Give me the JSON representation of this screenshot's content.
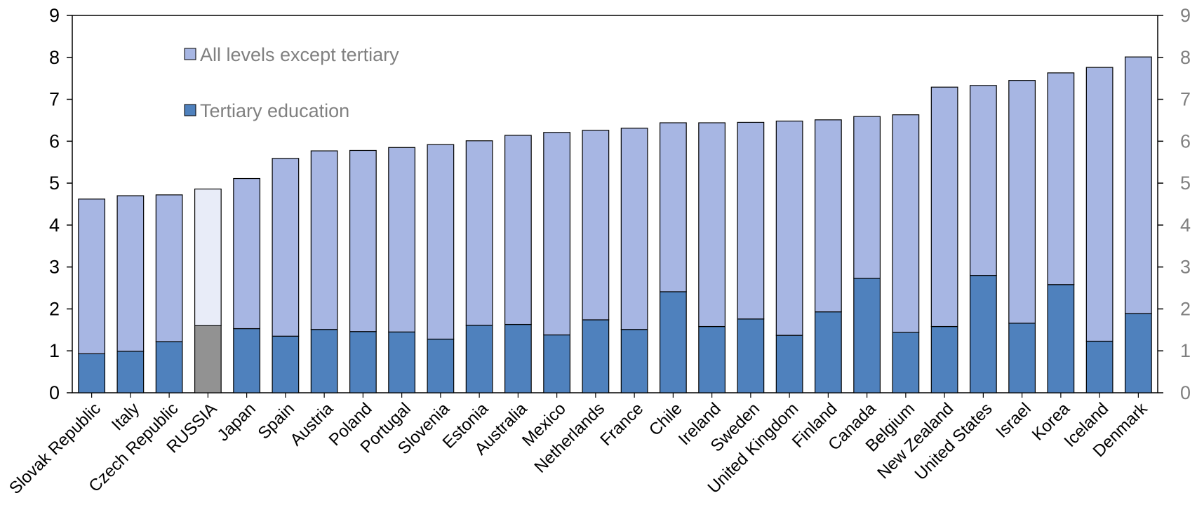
{
  "chart_data": {
    "type": "bar",
    "stacked": true,
    "categories": [
      "Slovak Republic",
      "Italy",
      "Czech Republic",
      "RUSSIA",
      "Japan",
      "Spain",
      "Austria",
      "Poland",
      "Portugal",
      "Slovenia",
      "Estonia",
      "Australia",
      "Mexico",
      "Netherlands",
      "France",
      "Chile",
      "Ireland",
      "Sweden",
      "United Kingdom",
      "Finland",
      "Canada",
      "Belgium",
      "New Zealand",
      "United States",
      "Israel",
      "Korea",
      "Iceland",
      "Denmark"
    ],
    "series": [
      {
        "name": "Tertiary education",
        "values": [
          0.93,
          0.99,
          1.22,
          1.6,
          1.53,
          1.35,
          1.51,
          1.46,
          1.45,
          1.28,
          1.61,
          1.63,
          1.38,
          1.74,
          1.51,
          2.41,
          1.58,
          1.76,
          1.37,
          1.93,
          2.73,
          1.44,
          1.58,
          2.8,
          1.66,
          2.58,
          1.23,
          1.89
        ]
      },
      {
        "name": "All levels except tertiary",
        "values": [
          3.69,
          3.71,
          3.5,
          3.26,
          3.58,
          4.24,
          4.26,
          4.32,
          4.4,
          4.64,
          4.4,
          4.51,
          4.83,
          4.52,
          4.8,
          4.03,
          4.86,
          4.69,
          5.11,
          4.58,
          3.86,
          5.19,
          5.71,
          4.53,
          5.79,
          5.05,
          6.53,
          6.12
        ]
      }
    ],
    "highlight_category": "RUSSIA",
    "ylim": [
      0,
      9
    ],
    "yticks": [
      "0",
      "1",
      "2",
      "3",
      "4",
      "5",
      "6",
      "7",
      "8",
      "9"
    ],
    "grid": false,
    "legend_position": "top-left",
    "colors": {
      "tertiary": "#4f81bd",
      "non_tertiary": "#a7b6e3",
      "highlight_tertiary": "#929292",
      "highlight_non_tertiary": "#e8ecf8",
      "outline": "#000000"
    }
  }
}
